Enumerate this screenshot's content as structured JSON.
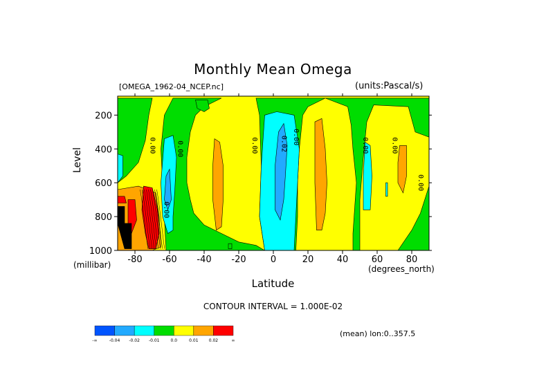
{
  "chart_data": {
    "type": "heatmap",
    "title": "Monthly Mean Omega",
    "subtitle_left": "[OMEGA_1962-04_NCEP.nc]",
    "subtitle_right": "(units:Pascal/s)",
    "xlabel": "Latitude",
    "xunits": "(degrees_north)",
    "ylabel": "Level",
    "yunits": "(millibar)",
    "xlim": [
      -90,
      90
    ],
    "ylim": [
      1000,
      100
    ],
    "x_ticks": [
      "-80",
      "-60",
      "-40",
      "-20",
      "0",
      "20",
      "40",
      "60",
      "80"
    ],
    "x_tick_values": [
      -80,
      -60,
      -40,
      -20,
      0,
      20,
      40,
      60,
      80
    ],
    "y_ticks": [
      "200",
      "400",
      "600",
      "800",
      "1000"
    ],
    "y_tick_values": [
      200,
      400,
      600,
      800,
      1000
    ],
    "contour_interval_text": "CONTOUR INTERVAL = 1.000E-02",
    "footer_text": "(mean) lon:0..357.5",
    "contour_labels": [
      {
        "text": "0.00",
        "lat": -71,
        "lev": 380
      },
      {
        "text": "0.00",
        "lat": -55,
        "lev": 400
      },
      {
        "text": "0.00",
        "lat": -12,
        "lev": 380
      },
      {
        "text": "0.02",
        "lat": 5,
        "lev": 370
      },
      {
        "text": "0.00",
        "lat": 12,
        "lev": 330
      },
      {
        "text": "0.00",
        "lat": 52,
        "lev": 380
      },
      {
        "text": "0.00",
        "lat": 69,
        "lev": 380
      },
      {
        "text": "0.00",
        "lat": 84,
        "lev": 600
      },
      {
        "text": "0.00",
        "lat": -63,
        "lev": 760
      }
    ],
    "colorbar": {
      "bins": [
        {
          "color": "#0055ff",
          "label": "-∞"
        },
        {
          "color": "#22aaff",
          "label": "-0.04"
        },
        {
          "color": "#00ffff",
          "label": "-0.02"
        },
        {
          "color": "#00dd00",
          "label": "-0.01"
        },
        {
          "color": "#ffff00",
          "label": "0.0"
        },
        {
          "color": "#ffa500",
          "label": "0.01"
        },
        {
          "color": "#ff0000",
          "label": "0.02"
        }
      ],
      "end_label": "∞"
    },
    "regions": [
      {
        "level": "green",
        "points": [
          [
            -90,
            100
          ],
          [
            -70,
            100
          ],
          [
            -72,
            200
          ],
          [
            -74,
            350
          ],
          [
            -78,
            480
          ],
          [
            -85,
            560
          ],
          [
            -90,
            600
          ]
        ]
      },
      {
        "level": "green",
        "points": [
          [
            -58,
            100
          ],
          [
            -30,
            100
          ],
          [
            -40,
            150
          ],
          [
            -45,
            200
          ],
          [
            -48,
            300
          ],
          [
            -50,
            450
          ],
          [
            -50,
            600
          ],
          [
            -48,
            700
          ],
          [
            -46,
            780
          ],
          [
            -40,
            850
          ],
          [
            -30,
            900
          ],
          [
            -20,
            950
          ],
          [
            -10,
            970
          ],
          [
            -5,
            1000
          ],
          [
            -62,
            1000
          ],
          [
            -63,
            800
          ],
          [
            -65,
            400
          ],
          [
            -63,
            200
          ]
        ]
      },
      {
        "level": "green",
        "points": [
          [
            -45,
            110
          ],
          [
            -38,
            110
          ],
          [
            -37,
            160
          ],
          [
            -40,
            180
          ],
          [
            -44,
            160
          ]
        ]
      },
      {
        "level": "green",
        "points": [
          [
            -10,
            100
          ],
          [
            30,
            100
          ],
          [
            20,
            150
          ],
          [
            17,
            200
          ],
          [
            15,
            400
          ],
          [
            14,
            600
          ],
          [
            14,
            800
          ],
          [
            13,
            1000
          ],
          [
            -5,
            1000
          ],
          [
            -8,
            800
          ],
          [
            -7,
            500
          ],
          [
            -8,
            200
          ]
        ]
      },
      {
        "level": "green",
        "points": [
          [
            30,
            100
          ],
          [
            90,
            100
          ],
          [
            90,
            1000
          ],
          [
            46,
            1000
          ],
          [
            46,
            900
          ],
          [
            48,
            600
          ],
          [
            46,
            400
          ],
          [
            45,
            260
          ],
          [
            43,
            150
          ]
        ]
      },
      {
        "level": "green",
        "points": [
          [
            -26,
            960
          ],
          [
            -24,
            960
          ],
          [
            -24,
            990
          ],
          [
            -26,
            990
          ]
        ]
      },
      {
        "level": "yellow",
        "points": [
          [
            58,
            140
          ],
          [
            78,
            150
          ],
          [
            82,
            300
          ],
          [
            90,
            330
          ],
          [
            90,
            620
          ],
          [
            85,
            780
          ],
          [
            80,
            880
          ],
          [
            72,
            1000
          ],
          [
            50,
            1000
          ],
          [
            50,
            700
          ],
          [
            52,
            450
          ],
          [
            54,
            240
          ]
        ]
      },
      {
        "level": "cyan",
        "points": [
          [
            2,
            180
          ],
          [
            12,
            200
          ],
          [
            15,
            400
          ],
          [
            14,
            600
          ],
          [
            13,
            800
          ],
          [
            12,
            1000
          ],
          [
            -5,
            1000
          ],
          [
            -8,
            800
          ],
          [
            -7,
            500
          ],
          [
            -5,
            200
          ]
        ]
      },
      {
        "level": "blue",
        "points": [
          [
            3,
            300
          ],
          [
            6,
            250
          ],
          [
            8,
            380
          ],
          [
            7,
            550
          ],
          [
            6,
            700
          ],
          [
            4,
            820
          ],
          [
            1,
            760
          ],
          [
            1,
            500
          ]
        ]
      },
      {
        "level": "cyan",
        "points": [
          [
            -63,
            340
          ],
          [
            -58,
            320
          ],
          [
            -56,
            450
          ],
          [
            -57,
            650
          ],
          [
            -58,
            800
          ],
          [
            -58,
            880
          ],
          [
            -61,
            900
          ],
          [
            -64,
            800
          ],
          [
            -65,
            600
          ]
        ]
      },
      {
        "level": "blue",
        "points": [
          [
            -62,
            560
          ],
          [
            -60,
            520
          ],
          [
            -59,
            700
          ],
          [
            -61,
            760
          ],
          [
            -63,
            700
          ]
        ]
      },
      {
        "level": "cyan",
        "points": [
          [
            53,
            360
          ],
          [
            56,
            380
          ],
          [
            57,
            560
          ],
          [
            56,
            760
          ],
          [
            52,
            760
          ],
          [
            52,
            560
          ]
        ]
      },
      {
        "level": "cyan",
        "points": [
          [
            -90,
            430
          ],
          [
            -87,
            440
          ],
          [
            -87,
            560
          ],
          [
            -90,
            600
          ]
        ]
      },
      {
        "level": "cyan",
        "points": [
          [
            -80,
            640
          ],
          [
            -76,
            660
          ],
          [
            -75,
            720
          ],
          [
            -79,
            740
          ]
        ]
      },
      {
        "level": "cyan",
        "points": [
          [
            65,
            600
          ],
          [
            66,
            600
          ],
          [
            66,
            680
          ],
          [
            65,
            680
          ]
        ]
      },
      {
        "level": "orange",
        "points": [
          [
            -34,
            340
          ],
          [
            -31,
            360
          ],
          [
            -29,
            500
          ],
          [
            -29,
            700
          ],
          [
            -30,
            860
          ],
          [
            -33,
            880
          ],
          [
            -35,
            700
          ],
          [
            -35,
            500
          ]
        ]
      },
      {
        "level": "orange",
        "points": [
          [
            24,
            240
          ],
          [
            28,
            220
          ],
          [
            30,
            400
          ],
          [
            31,
            600
          ],
          [
            30,
            780
          ],
          [
            28,
            880
          ],
          [
            25,
            880
          ],
          [
            24,
            600
          ],
          [
            24,
            400
          ]
        ]
      },
      {
        "level": "orange",
        "points": [
          [
            73,
            380
          ],
          [
            77,
            380
          ],
          [
            77,
            560
          ],
          [
            75,
            660
          ],
          [
            72,
            600
          ],
          [
            72,
            480
          ]
        ]
      },
      {
        "level": "orange",
        "points": [
          [
            -90,
            640
          ],
          [
            -78,
            620
          ],
          [
            -68,
            660
          ],
          [
            -66,
            800
          ],
          [
            -65,
            980
          ],
          [
            -70,
            1000
          ],
          [
            -90,
            1000
          ]
        ]
      },
      {
        "level": "red",
        "points": [
          [
            -90,
            680
          ],
          [
            -86,
            680
          ],
          [
            -85,
            720
          ],
          [
            -90,
            720
          ]
        ]
      },
      {
        "level": "red",
        "points": [
          [
            -84,
            700
          ],
          [
            -80,
            700
          ],
          [
            -79,
            820
          ],
          [
            -82,
            900
          ],
          [
            -84,
            880
          ]
        ]
      },
      {
        "level": "red",
        "points": [
          [
            -75,
            620
          ],
          [
            -70,
            630
          ],
          [
            -67,
            760
          ],
          [
            -66,
            900
          ],
          [
            -68,
            990
          ],
          [
            -72,
            990
          ],
          [
            -74,
            900
          ],
          [
            -76,
            760
          ]
        ]
      },
      {
        "level": "black",
        "points": [
          [
            -90,
            740
          ],
          [
            -86,
            740
          ],
          [
            -86,
            840
          ],
          [
            -82,
            840
          ],
          [
            -82,
            990
          ],
          [
            -86,
            990
          ],
          [
            -90,
            840
          ]
        ]
      }
    ]
  }
}
